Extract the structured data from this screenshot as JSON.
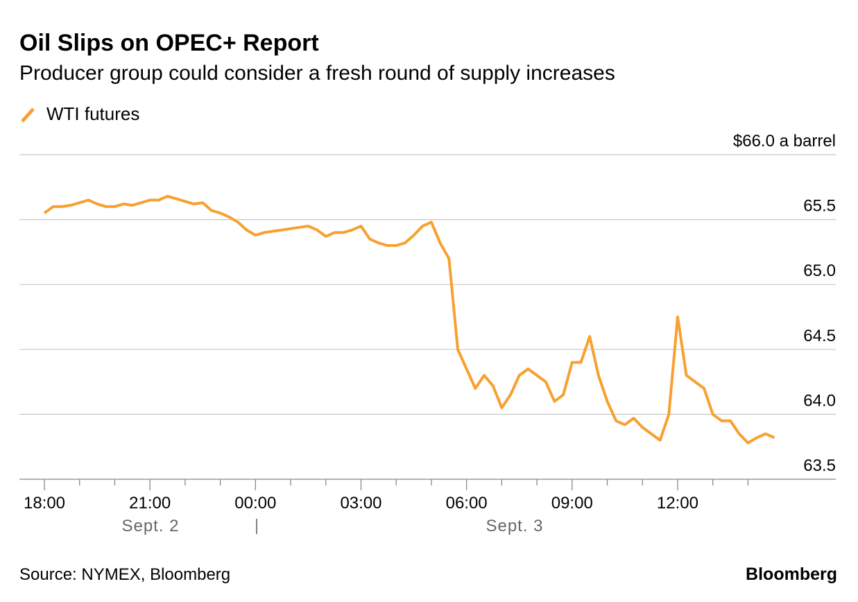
{
  "chart_data": {
    "type": "line",
    "title": "Oil Slips on OPEC+ Report",
    "subtitle": "Producer group could consider a fresh round of supply increases",
    "categories": [
      "18:00",
      null,
      null,
      null,
      null,
      null,
      null,
      null,
      null,
      null,
      null,
      null,
      "21:00",
      null,
      null,
      null,
      null,
      null,
      null,
      null,
      null,
      null,
      null,
      null,
      "00:00",
      null,
      null,
      null,
      null,
      null,
      null,
      null,
      null,
      null,
      null,
      null,
      "03:00",
      null,
      null,
      null,
      null,
      null,
      null,
      null,
      null,
      null,
      null,
      null,
      "06:00",
      null,
      null,
      null,
      null,
      null,
      null,
      null,
      null,
      null,
      null,
      null,
      "09:00",
      null,
      null,
      null,
      null,
      null,
      null,
      null,
      null,
      null,
      null,
      null,
      "12:00",
      null,
      null,
      null,
      null,
      null,
      null,
      null,
      null,
      null,
      null,
      null
    ],
    "date_labels": [
      "Sept. 2",
      "Sept. 3"
    ],
    "series": [
      {
        "name": "WTI futures",
        "color": "#f8a030",
        "values": [
          65.55,
          65.6,
          65.6,
          65.61,
          65.63,
          65.65,
          65.62,
          65.6,
          65.6,
          65.62,
          65.61,
          65.63,
          65.65,
          65.65,
          65.68,
          65.66,
          65.64,
          65.62,
          65.63,
          65.57,
          65.55,
          65.52,
          65.48,
          65.42,
          65.38,
          65.4,
          65.41,
          65.42,
          65.43,
          65.44,
          65.45,
          65.42,
          65.37,
          65.4,
          65.4,
          65.42,
          65.45,
          65.35,
          65.32,
          65.3,
          65.3,
          65.32,
          65.38,
          65.45,
          65.48,
          65.32,
          65.2,
          64.5,
          64.35,
          64.2,
          64.3,
          64.22,
          64.05,
          64.15,
          64.3,
          64.35,
          64.3,
          64.25,
          64.1,
          64.15,
          64.4,
          64.4,
          64.6,
          64.3,
          64.1,
          63.95,
          63.92,
          63.97,
          63.9,
          63.85,
          63.8,
          64.0,
          64.75,
          64.3,
          64.25,
          64.2,
          64.0,
          63.95,
          63.95,
          63.85,
          63.78,
          63.82,
          63.85,
          63.82
        ]
      }
    ],
    "ylim": [
      63.5,
      66.0
    ],
    "yticks": [
      63.5,
      {
        "value": 64.0,
        "label": "64.0"
      },
      64.5,
      {
        "value": 65.0,
        "label": "65.0"
      },
      65.5,
      {
        "value": 66.0,
        "label": "$66.0 a barrel"
      }
    ],
    "grid": true,
    "source": "Source: NYMEX, Bloomberg",
    "brand": "Bloomberg"
  }
}
